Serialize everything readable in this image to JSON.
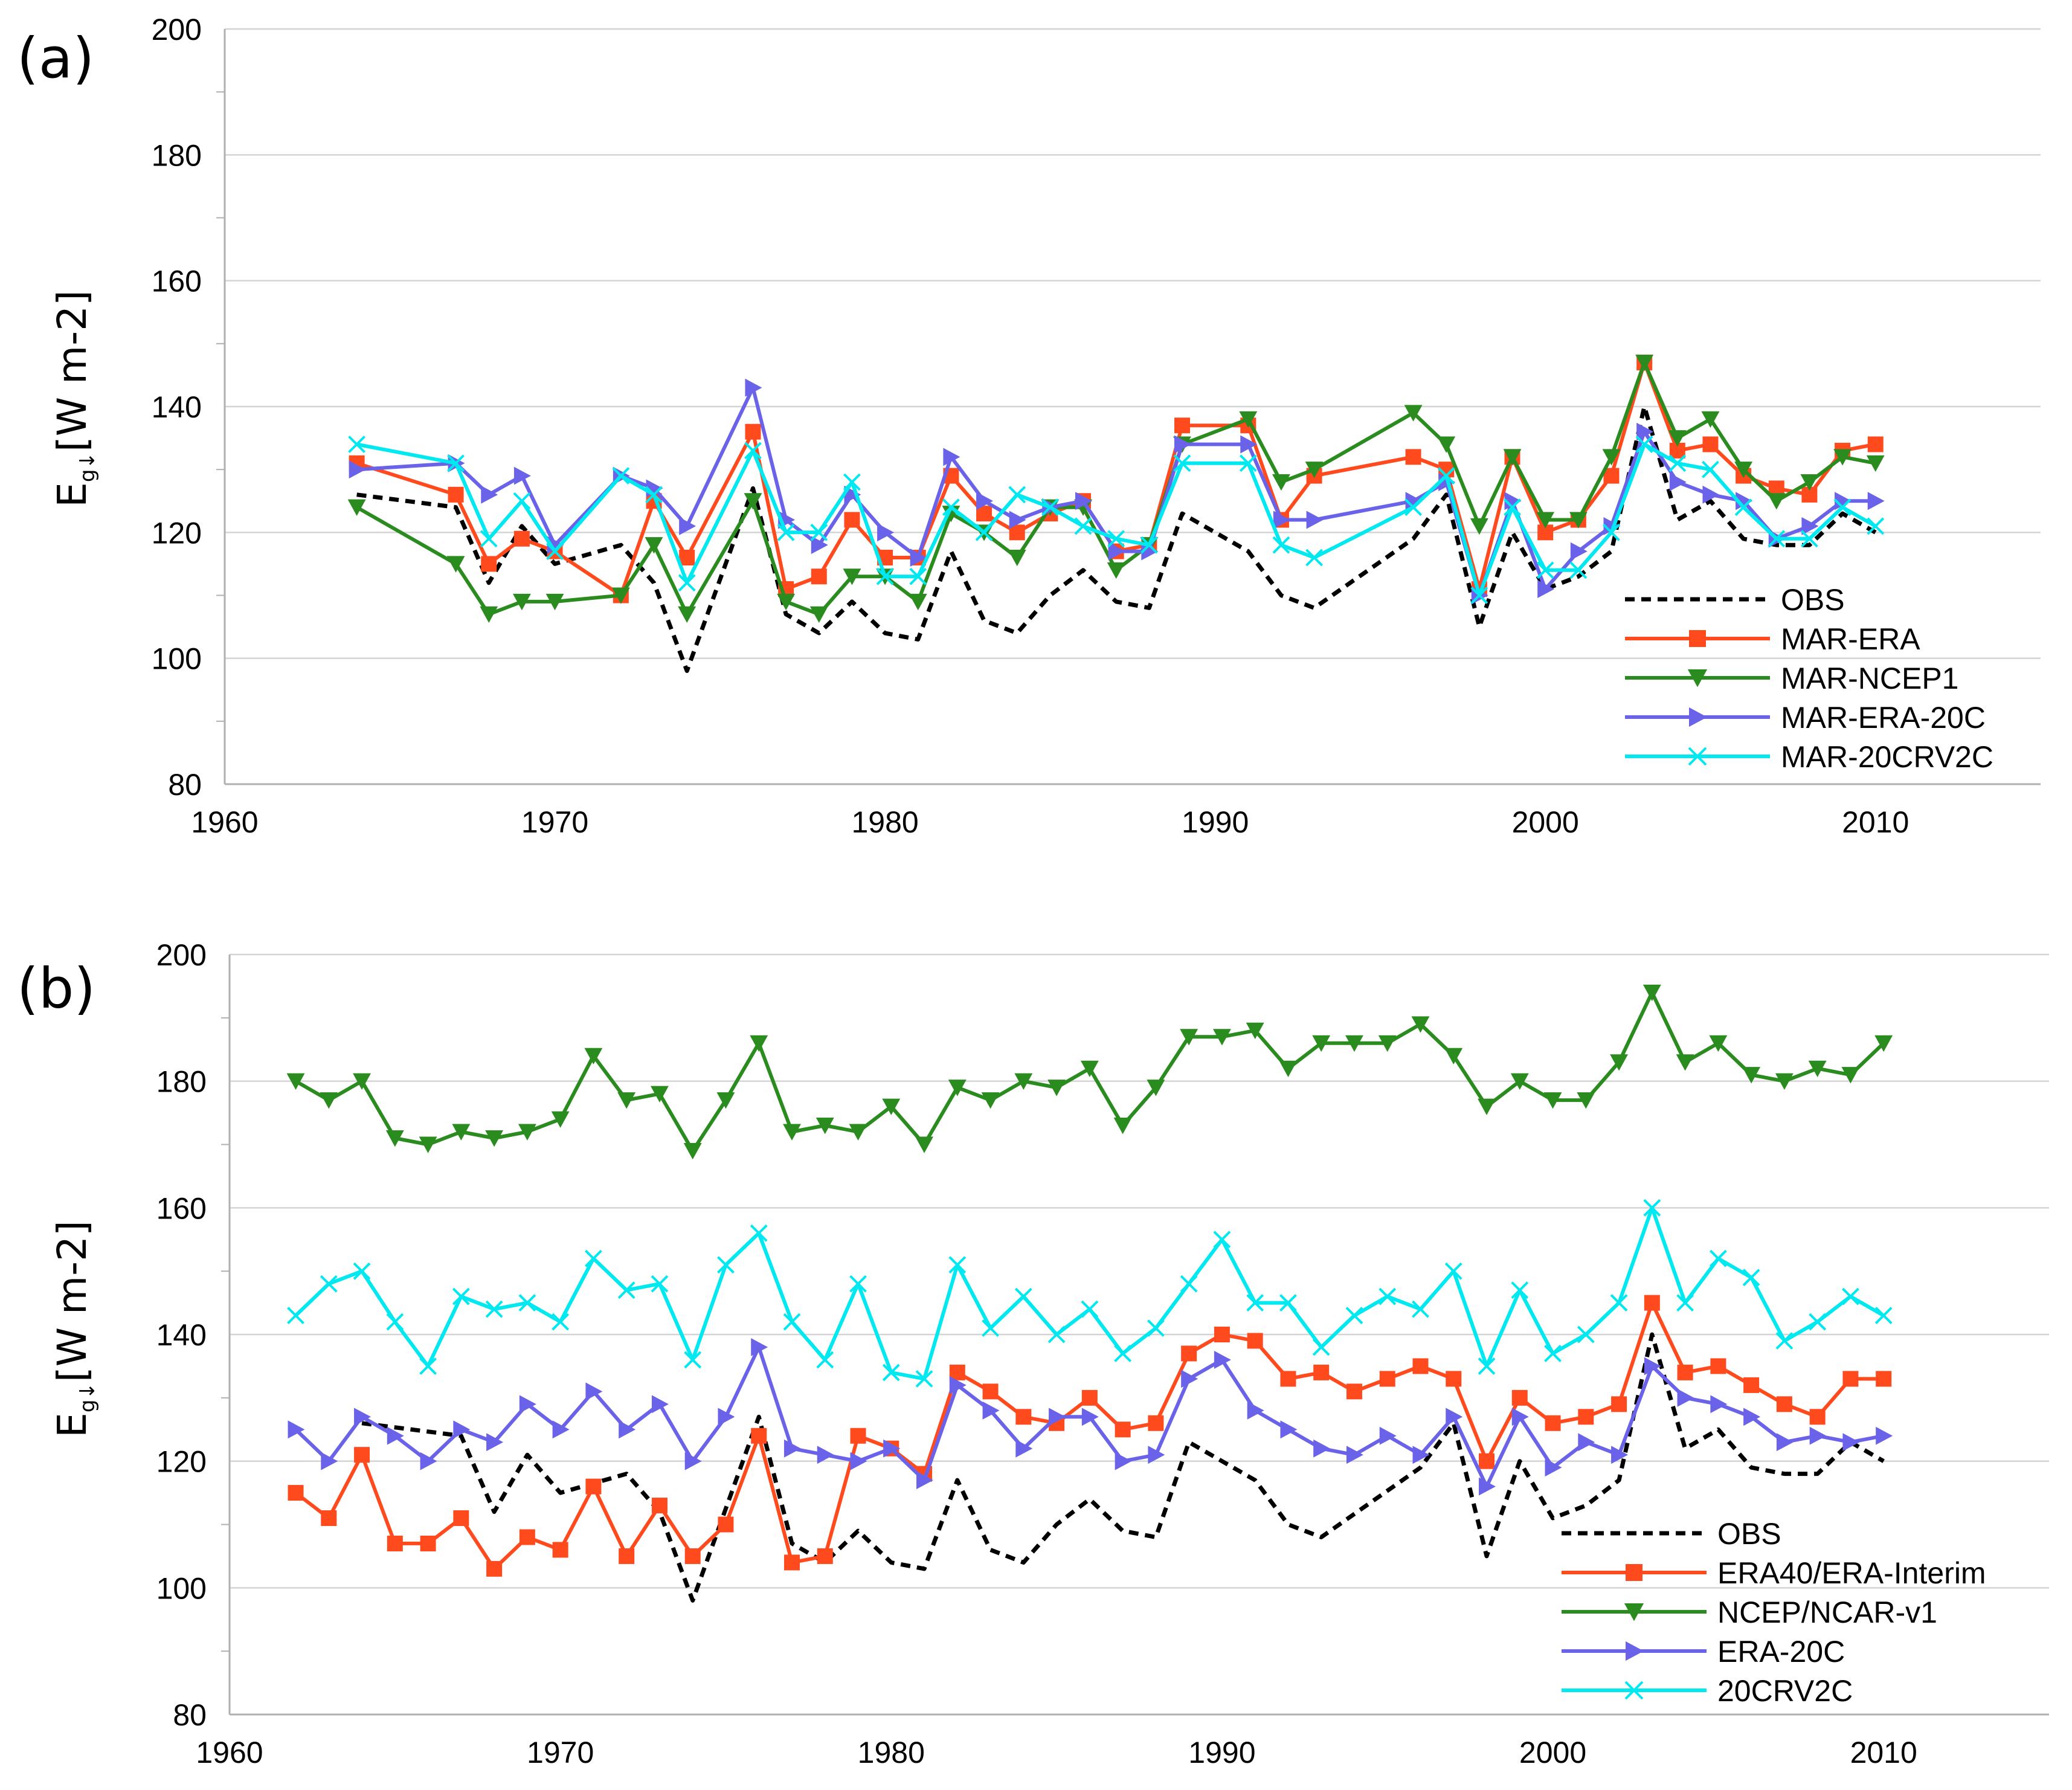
{
  "chart_data": [
    {
      "type": "line",
      "panel_label": "(a)",
      "ylabel_main": "E",
      "ylabel_sub": "g↓",
      "ylabel_unit": "[W m-2]",
      "xlim": [
        1960,
        2015
      ],
      "ylim": [
        80,
        200
      ],
      "xticks": [
        "1960",
        "1970",
        "1980",
        "1990",
        "2000",
        "2010"
      ],
      "yticks": [
        "80",
        "100",
        "120",
        "140",
        "160",
        "180",
        "200"
      ],
      "grid": true,
      "legend_position": "bottom-right",
      "series": [
        {
          "name": "OBS",
          "color": "#000000",
          "marker": "none",
          "dashed": true,
          "x": [
            1964,
            1967,
            1968,
            1969,
            1970,
            1972,
            1973,
            1974,
            1976,
            1977,
            1978,
            1979,
            1980,
            1981,
            1982,
            1983,
            1984,
            1985,
            1986,
            1987,
            1988,
            1989,
            1991,
            1992,
            1993,
            1996,
            1997,
            1998,
            1999,
            2000,
            2001,
            2002,
            2003,
            2004,
            2005,
            2006,
            2007,
            2008,
            2009,
            2010
          ],
          "y": [
            126,
            124,
            112,
            121,
            115,
            118,
            112,
            98,
            127,
            107,
            104,
            109,
            104,
            103,
            117,
            106,
            104,
            110,
            114,
            109,
            108,
            123,
            117,
            110,
            108,
            119,
            126,
            105,
            120,
            111,
            113,
            117,
            140,
            122,
            125,
            119,
            118,
            118,
            123,
            120
          ]
        },
        {
          "name": "MAR-ERA",
          "color": "#ff4a1e",
          "marker": "square",
          "dashed": false,
          "x": [
            1964,
            1967,
            1968,
            1969,
            1970,
            1972,
            1973,
            1974,
            1976,
            1977,
            1978,
            1979,
            1980,
            1981,
            1982,
            1983,
            1984,
            1985,
            1986,
            1987,
            1988,
            1989,
            1991,
            1992,
            1993,
            1996,
            1997,
            1998,
            1999,
            2000,
            2001,
            2002,
            2003,
            2004,
            2005,
            2006,
            2007,
            2008,
            2009,
            2010
          ],
          "y": [
            131,
            126,
            115,
            119,
            117,
            110,
            125,
            116,
            136,
            111,
            113,
            122,
            116,
            116,
            129,
            123,
            120,
            123,
            125,
            117,
            118,
            137,
            137,
            122,
            129,
            132,
            130,
            111,
            132,
            120,
            122,
            129,
            147,
            133,
            134,
            129,
            127,
            126,
            133,
            134
          ]
        },
        {
          "name": "MAR-NCEP1",
          "color": "#2a8c1e",
          "marker": "triangle-down",
          "dashed": false,
          "x": [
            1964,
            1967,
            1968,
            1969,
            1970,
            1972,
            1973,
            1974,
            1976,
            1977,
            1978,
            1979,
            1980,
            1981,
            1982,
            1983,
            1984,
            1985,
            1986,
            1987,
            1988,
            1989,
            1991,
            1992,
            1993,
            1996,
            1997,
            1998,
            1999,
            2000,
            2001,
            2002,
            2003,
            2004,
            2005,
            2006,
            2007,
            2008,
            2009,
            2010
          ],
          "y": [
            124,
            115,
            107,
            109,
            109,
            110,
            118,
            107,
            125,
            109,
            107,
            113,
            113,
            109,
            123,
            120,
            116,
            124,
            124,
            114,
            118,
            134,
            138,
            128,
            130,
            139,
            134,
            121,
            132,
            122,
            122,
            132,
            147,
            135,
            138,
            130,
            125,
            128,
            132,
            131
          ]
        },
        {
          "name": "MAR-ERA-20C",
          "color": "#6a62e8",
          "marker": "triangle-right",
          "dashed": false,
          "x": [
            1964,
            1967,
            1968,
            1969,
            1970,
            1972,
            1973,
            1974,
            1976,
            1977,
            1978,
            1979,
            1980,
            1981,
            1982,
            1983,
            1984,
            1985,
            1986,
            1987,
            1988,
            1989,
            1991,
            1992,
            1993,
            1996,
            1997,
            1998,
            1999,
            2000,
            2001,
            2002,
            2003,
            2004,
            2005,
            2006,
            2007,
            2008,
            2009,
            2010
          ],
          "y": [
            130,
            131,
            126,
            129,
            118,
            129,
            127,
            121,
            143,
            122,
            118,
            126,
            120,
            116,
            132,
            125,
            122,
            124,
            125,
            117,
            117,
            134,
            134,
            122,
            122,
            125,
            128,
            110,
            125,
            111,
            117,
            121,
            136,
            128,
            126,
            125,
            119,
            121,
            125,
            125
          ]
        },
        {
          "name": "MAR-20CRV2C",
          "color": "#00e8f0",
          "marker": "x",
          "dashed": false,
          "x": [
            1964,
            1967,
            1968,
            1969,
            1970,
            1972,
            1973,
            1974,
            1976,
            1977,
            1978,
            1979,
            1980,
            1981,
            1982,
            1983,
            1984,
            1985,
            1986,
            1987,
            1988,
            1989,
            1991,
            1992,
            1993,
            1996,
            1997,
            1998,
            1999,
            2000,
            2001,
            2002,
            2003,
            2004,
            2005,
            2006,
            2007,
            2008,
            2009,
            2010
          ],
          "y": [
            134,
            131,
            119,
            125,
            117,
            129,
            126,
            112,
            133,
            120,
            120,
            128,
            113,
            113,
            124,
            120,
            126,
            124,
            121,
            119,
            118,
            131,
            131,
            118,
            116,
            124,
            129,
            110,
            124,
            114,
            114,
            120,
            134,
            131,
            130,
            124,
            119,
            119,
            124,
            121
          ]
        }
      ]
    },
    {
      "type": "line",
      "panel_label": "(b)",
      "ylabel_main": "E",
      "ylabel_sub": "g↓",
      "ylabel_unit": "[W m-2]",
      "xlim": [
        1960,
        2015
      ],
      "ylim": [
        80,
        200
      ],
      "xticks": [
        "1960",
        "1970",
        "1980",
        "1990",
        "2000",
        "2010"
      ],
      "yticks": [
        "80",
        "100",
        "120",
        "140",
        "160",
        "180",
        "200"
      ],
      "grid": true,
      "legend_position": "bottom-right",
      "series": [
        {
          "name": "OBS",
          "color": "#000000",
          "marker": "none",
          "dashed": true,
          "x": [
            1964,
            1967,
            1968,
            1969,
            1970,
            1972,
            1973,
            1974,
            1976,
            1977,
            1978,
            1979,
            1980,
            1981,
            1982,
            1983,
            1984,
            1985,
            1986,
            1987,
            1988,
            1989,
            1991,
            1992,
            1993,
            1996,
            1997,
            1998,
            1999,
            2000,
            2001,
            2002,
            2003,
            2004,
            2005,
            2006,
            2007,
            2008,
            2009,
            2010
          ],
          "y": [
            126,
            124,
            112,
            121,
            115,
            118,
            112,
            98,
            127,
            107,
            104,
            109,
            104,
            103,
            117,
            106,
            104,
            110,
            114,
            109,
            108,
            123,
            117,
            110,
            108,
            119,
            126,
            105,
            120,
            111,
            113,
            117,
            140,
            122,
            125,
            119,
            118,
            118,
            123,
            120
          ]
        },
        {
          "name": "ERA40/ERA-Interim",
          "color": "#ff4a1e",
          "marker": "square",
          "dashed": false,
          "x": [
            1962,
            1963,
            1964,
            1965,
            1966,
            1967,
            1968,
            1969,
            1970,
            1971,
            1972,
            1973,
            1974,
            1975,
            1976,
            1977,
            1978,
            1979,
            1980,
            1981,
            1982,
            1983,
            1984,
            1985,
            1986,
            1987,
            1988,
            1989,
            1990,
            1991,
            1992,
            1993,
            1994,
            1995,
            1996,
            1997,
            1998,
            1999,
            2000,
            2001,
            2002,
            2003,
            2004,
            2005,
            2006,
            2007,
            2008,
            2009,
            2010
          ],
          "y": [
            115,
            111,
            121,
            107,
            107,
            111,
            103,
            108,
            106,
            116,
            105,
            113,
            105,
            110,
            124,
            104,
            105,
            124,
            122,
            118,
            134,
            131,
            127,
            126,
            130,
            125,
            126,
            137,
            140,
            139,
            133,
            134,
            131,
            133,
            135,
            133,
            120,
            130,
            126,
            127,
            129,
            145,
            134,
            135,
            132,
            129,
            127,
            133,
            133
          ]
        },
        {
          "name": "NCEP/NCAR-v1",
          "color": "#2a8c1e",
          "marker": "triangle-down",
          "dashed": false,
          "x": [
            1962,
            1963,
            1964,
            1965,
            1966,
            1967,
            1968,
            1969,
            1970,
            1971,
            1972,
            1973,
            1974,
            1975,
            1976,
            1977,
            1978,
            1979,
            1980,
            1981,
            1982,
            1983,
            1984,
            1985,
            1986,
            1987,
            1988,
            1989,
            1990,
            1991,
            1992,
            1993,
            1994,
            1995,
            1996,
            1997,
            1998,
            1999,
            2000,
            2001,
            2002,
            2003,
            2004,
            2005,
            2006,
            2007,
            2008,
            2009,
            2010
          ],
          "y": [
            180,
            177,
            180,
            171,
            170,
            172,
            171,
            172,
            174,
            184,
            177,
            178,
            169,
            177,
            186,
            172,
            173,
            172,
            176,
            170,
            179,
            177,
            180,
            179,
            182,
            173,
            179,
            187,
            187,
            188,
            182,
            186,
            186,
            186,
            189,
            184,
            176,
            180,
            177,
            177,
            183,
            194,
            183,
            186,
            181,
            180,
            182,
            181,
            186
          ]
        },
        {
          "name": "ERA-20C",
          "color": "#6a62e8",
          "marker": "triangle-right",
          "dashed": false,
          "x": [
            1962,
            1963,
            1964,
            1965,
            1966,
            1967,
            1968,
            1969,
            1970,
            1971,
            1972,
            1973,
            1974,
            1975,
            1976,
            1977,
            1978,
            1979,
            1980,
            1981,
            1982,
            1983,
            1984,
            1985,
            1986,
            1987,
            1988,
            1989,
            1990,
            1991,
            1992,
            1993,
            1994,
            1995,
            1996,
            1997,
            1998,
            1999,
            2000,
            2001,
            2002,
            2003,
            2004,
            2005,
            2006,
            2007,
            2008,
            2009,
            2010
          ],
          "y": [
            125,
            120,
            127,
            124,
            120,
            125,
            123,
            129,
            125,
            131,
            125,
            129,
            120,
            127,
            138,
            122,
            121,
            120,
            122,
            117,
            132,
            128,
            122,
            127,
            127,
            120,
            121,
            133,
            136,
            128,
            125,
            122,
            121,
            124,
            121,
            127,
            116,
            127,
            119,
            123,
            121,
            135,
            130,
            129,
            127,
            123,
            124,
            123,
            124
          ]
        },
        {
          "name": "20CRV2C",
          "color": "#00e8f0",
          "marker": "x",
          "dashed": false,
          "x": [
            1962,
            1963,
            1964,
            1965,
            1966,
            1967,
            1968,
            1969,
            1970,
            1971,
            1972,
            1973,
            1974,
            1975,
            1976,
            1977,
            1978,
            1979,
            1980,
            1981,
            1982,
            1983,
            1984,
            1985,
            1986,
            1987,
            1988,
            1989,
            1990,
            1991,
            1992,
            1993,
            1994,
            1995,
            1996,
            1997,
            1998,
            1999,
            2000,
            2001,
            2002,
            2003,
            2004,
            2005,
            2006,
            2007,
            2008,
            2009,
            2010
          ],
          "y": [
            143,
            148,
            150,
            142,
            135,
            146,
            144,
            145,
            142,
            152,
            147,
            148,
            136,
            151,
            156,
            142,
            136,
            148,
            134,
            133,
            151,
            141,
            146,
            140,
            144,
            137,
            141,
            148,
            155,
            145,
            145,
            138,
            143,
            146,
            144,
            150,
            135,
            147,
            137,
            140,
            145,
            160,
            145,
            152,
            149,
            139,
            142,
            146,
            143
          ]
        }
      ]
    }
  ]
}
